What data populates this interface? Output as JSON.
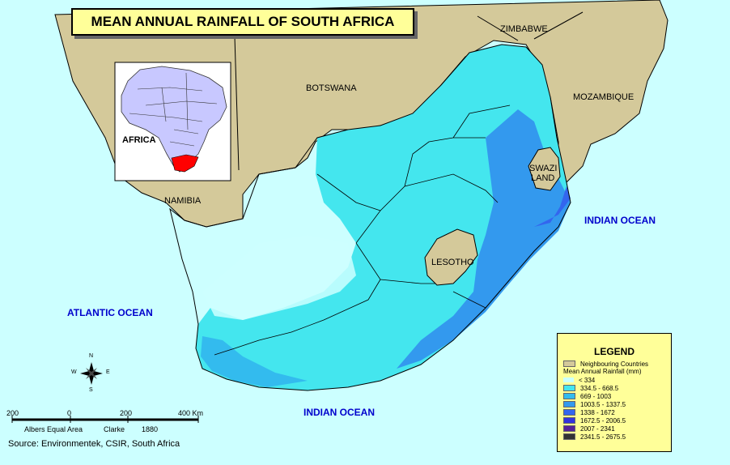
{
  "map": {
    "title": "MEAN ANNUAL RAINFALL OF SOUTH AFRICA",
    "labels": {
      "zimbabwe": "ZIMBABWE",
      "botswana": "BOTSWANA",
      "mozambique": "MOZAMBIQUE",
      "namibia": "NAMIBIA",
      "swaziland_1": "SWAZI",
      "swaziland_2": "LAND",
      "lesotho": "LESOTHO",
      "africa": "AFRICA"
    },
    "oceans": {
      "atlantic": "ATLANTIC OCEAN",
      "indian_east": "INDIAN OCEAN",
      "indian_south": "INDIAN OCEAN"
    },
    "compass": {
      "n": "N",
      "s": "S",
      "e": "E",
      "w": "W"
    },
    "scale_bar": {
      "ticks": [
        "200",
        "0",
        "200",
        "400 Km"
      ],
      "projection": "Albers Equal Area",
      "spheroid": "Clarke",
      "year": "1880"
    },
    "source": "Source: Environmentek, CSIR, South Africa"
  },
  "legend": {
    "title": "LEGEND",
    "neighbouring": {
      "label": "Neighbouring Countries",
      "color": "#d4c99a"
    },
    "subtitle": "Mean Annual Rainfall (mm)",
    "classes": [
      {
        "label": "< 334",
        "color": "#ccffff"
      },
      {
        "label": "334.5 - 668.5",
        "color": "#44e6ee"
      },
      {
        "label": "669 - 1003",
        "color": "#33bbee"
      },
      {
        "label": "1003.5 - 1337.5",
        "color": "#3399ee"
      },
      {
        "label": "1338 - 1672",
        "color": "#3366ee"
      },
      {
        "label": "1672.5 - 2006.5",
        "color": "#3333dd"
      },
      {
        "label": "2007 - 2341",
        "color": "#552299"
      },
      {
        "label": "2341.5 - 2675.5",
        "color": "#333333"
      }
    ]
  }
}
